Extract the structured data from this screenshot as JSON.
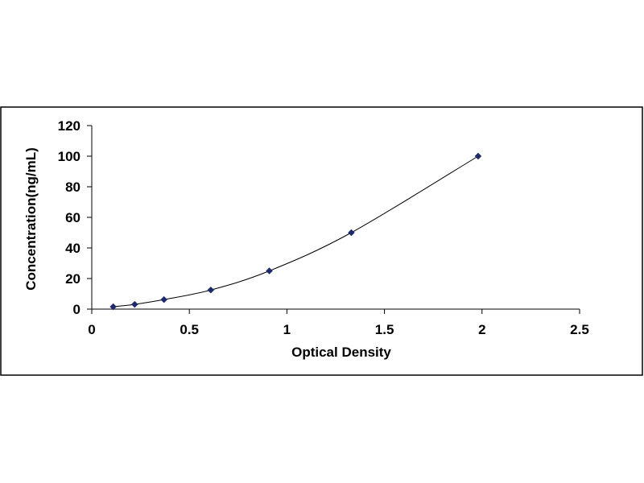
{
  "chart_data": {
    "type": "scatter",
    "title": "",
    "xlabel": "Optical Density",
    "ylabel": "Concentration(ng/mL)",
    "xlim": [
      0,
      2.5
    ],
    "ylim": [
      0,
      120
    ],
    "x_ticks": [
      "0",
      "0.5",
      "1",
      "1.5",
      "2",
      "2.5"
    ],
    "y_ticks": [
      "0",
      "20",
      "40",
      "60",
      "80",
      "100",
      "120"
    ],
    "grid": false,
    "legend": "none",
    "trendline": "smooth curve through points",
    "series": [
      {
        "x": [
          0.11,
          0.22,
          0.37,
          0.61,
          0.91,
          1.33,
          1.98
        ],
        "y": [
          1.56,
          3.12,
          6.25,
          12.5,
          25,
          50,
          100
        ]
      }
    ],
    "colors": {
      "marker": "#1f2a6e",
      "line": "#000000",
      "axis": "#000000",
      "frame": "#000000"
    }
  }
}
